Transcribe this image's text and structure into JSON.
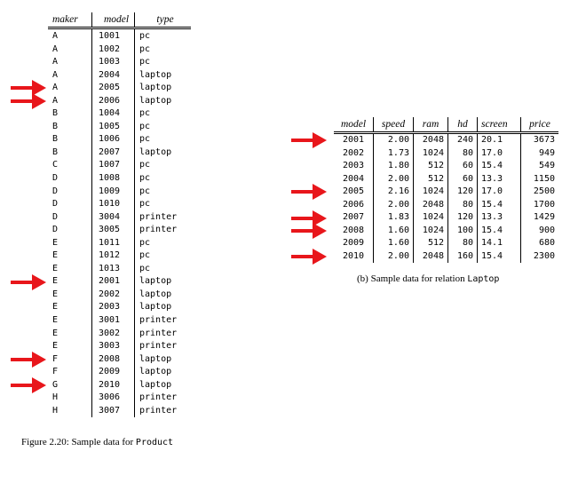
{
  "product": {
    "headers": [
      "maker",
      "model",
      "type"
    ],
    "rows": [
      [
        "A",
        "1001",
        "pc"
      ],
      [
        "A",
        "1002",
        "pc"
      ],
      [
        "A",
        "1003",
        "pc"
      ],
      [
        "A",
        "2004",
        "laptop"
      ],
      [
        "A",
        "2005",
        "laptop"
      ],
      [
        "A",
        "2006",
        "laptop"
      ],
      [
        "B",
        "1004",
        "pc"
      ],
      [
        "B",
        "1005",
        "pc"
      ],
      [
        "B",
        "1006",
        "pc"
      ],
      [
        "B",
        "2007",
        "laptop"
      ],
      [
        "C",
        "1007",
        "pc"
      ],
      [
        "D",
        "1008",
        "pc"
      ],
      [
        "D",
        "1009",
        "pc"
      ],
      [
        "D",
        "1010",
        "pc"
      ],
      [
        "D",
        "3004",
        "printer"
      ],
      [
        "D",
        "3005",
        "printer"
      ],
      [
        "E",
        "1011",
        "pc"
      ],
      [
        "E",
        "1012",
        "pc"
      ],
      [
        "E",
        "1013",
        "pc"
      ],
      [
        "E",
        "2001",
        "laptop"
      ],
      [
        "E",
        "2002",
        "laptop"
      ],
      [
        "E",
        "2003",
        "laptop"
      ],
      [
        "E",
        "3001",
        "printer"
      ],
      [
        "E",
        "3002",
        "printer"
      ],
      [
        "E",
        "3003",
        "printer"
      ],
      [
        "F",
        "2008",
        "laptop"
      ],
      [
        "F",
        "2009",
        "laptop"
      ],
      [
        "G",
        "2010",
        "laptop"
      ],
      [
        "H",
        "3006",
        "printer"
      ],
      [
        "H",
        "3007",
        "printer"
      ]
    ],
    "arrow_rows": [
      4,
      5,
      19,
      25,
      27
    ]
  },
  "laptop": {
    "headers": [
      "model",
      "speed",
      "ram",
      "hd",
      "screen",
      "price"
    ],
    "rows": [
      [
        "2001",
        "2.00",
        "2048",
        "240",
        "20.1",
        "3673"
      ],
      [
        "2002",
        "1.73",
        "1024",
        "80",
        "17.0",
        "949"
      ],
      [
        "2003",
        "1.80",
        "512",
        "60",
        "15.4",
        "549"
      ],
      [
        "2004",
        "2.00",
        "512",
        "60",
        "13.3",
        "1150"
      ],
      [
        "2005",
        "2.16",
        "1024",
        "120",
        "17.0",
        "2500"
      ],
      [
        "2006",
        "2.00",
        "2048",
        "80",
        "15.4",
        "1700"
      ],
      [
        "2007",
        "1.83",
        "1024",
        "120",
        "13.3",
        "1429"
      ],
      [
        "2008",
        "1.60",
        "1024",
        "100",
        "15.4",
        "900"
      ],
      [
        "2009",
        "1.60",
        "512",
        "80",
        "14.1",
        "680"
      ],
      [
        "2010",
        "2.00",
        "2048",
        "160",
        "15.4",
        "2300"
      ]
    ],
    "arrow_rows": [
      0,
      4,
      6,
      7,
      9
    ]
  },
  "captions": {
    "laptop_prefix": "(b) Sample data for relation ",
    "laptop_code": "Laptop",
    "figure_prefix": "Figure 2.20: Sample data for ",
    "figure_code": "Product"
  },
  "colors": {
    "arrow": "#e8161b",
    "ink": "#000000"
  }
}
